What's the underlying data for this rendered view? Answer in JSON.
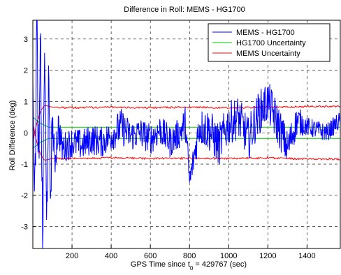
{
  "chart_data": {
    "type": "line",
    "title": "Difference in Roll: MEMS - HG1700",
    "xlabel_prefix": "GPS Time since t",
    "xlabel_sub": "0",
    "xlabel_suffix": " = 429767 (sec)",
    "ylabel": "Roll Difference (deg)",
    "xlim": [
      0,
      1570
    ],
    "ylim": [
      -3.7,
      3.6
    ],
    "xticks": [
      200,
      400,
      600,
      800,
      1000,
      1200,
      1400
    ],
    "yticks": [
      -3,
      -2,
      -1,
      0,
      1,
      2,
      3
    ],
    "grid": "dashed",
    "legend_position": "top-right",
    "series": [
      {
        "name": "MEMS - HG1700",
        "color": "#0000ff",
        "style": "noisy-line",
        "x": [
          0,
          10,
          20,
          30,
          40,
          50,
          60,
          70,
          80,
          90,
          100,
          110,
          130,
          150,
          200,
          250,
          300,
          350,
          400,
          450,
          500,
          550,
          600,
          650,
          700,
          750,
          780,
          800,
          850,
          900,
          950,
          1000,
          1050,
          1100,
          1150,
          1200,
          1250,
          1300,
          1350,
          1400,
          1450,
          1500,
          1570
        ],
        "values": [
          2.5,
          -2.3,
          3.6,
          -1.5,
          2.8,
          -3.6,
          3.0,
          -3.2,
          1.5,
          -2.0,
          0.5,
          -1.0,
          0.2,
          -0.5,
          -0.3,
          -0.4,
          -0.2,
          -0.3,
          -0.1,
          0.2,
          -0.1,
          0.0,
          -0.2,
          0.1,
          -0.3,
          0.0,
          0.3,
          -1.6,
          0.2,
          0.1,
          -0.4,
          0.3,
          0.5,
          -0.2,
          0.6,
          1.0,
          0.3,
          -0.5,
          0.4,
          0.2,
          0.1,
          0.0,
          0.4
        ],
        "noise": [
          1.2,
          1.2,
          1.2,
          1.2,
          1.2,
          1.2,
          1.2,
          1.2,
          1.0,
          1.0,
          0.8,
          0.7,
          0.6,
          0.5,
          0.5,
          0.5,
          0.5,
          0.5,
          0.5,
          0.6,
          0.5,
          0.5,
          0.5,
          0.5,
          0.5,
          0.5,
          0.6,
          0.4,
          0.6,
          0.7,
          0.7,
          0.7,
          0.7,
          0.7,
          0.7,
          0.7,
          0.7,
          0.6,
          0.5,
          0.3,
          0.3,
          0.3,
          0.3
        ]
      },
      {
        "name": "HG1700 Uncertainty",
        "color": "#00cc00",
        "x": [
          0,
          40,
          80,
          1570
        ],
        "values_upper": [
          0.5,
          0.3,
          0.18,
          0.18
        ],
        "values_lower": [
          -0.5,
          -0.3,
          -0.18,
          -0.18
        ]
      },
      {
        "name": "MEMS Uncertainty",
        "color": "#ff0000",
        "x": [
          0,
          20,
          40,
          60,
          80,
          100,
          200,
          400,
          600,
          800,
          1000,
          1200,
          1400,
          1570
        ],
        "values_upper": [
          -0.3,
          0.3,
          0.7,
          0.88,
          0.85,
          0.82,
          0.8,
          0.82,
          0.8,
          0.82,
          0.8,
          0.82,
          0.84,
          0.84
        ],
        "values_lower": [
          0.3,
          -0.3,
          -0.7,
          -0.88,
          -0.85,
          -0.82,
          -0.82,
          -0.8,
          -0.82,
          -0.82,
          -0.82,
          -0.8,
          -0.84,
          -0.84
        ]
      }
    ]
  }
}
